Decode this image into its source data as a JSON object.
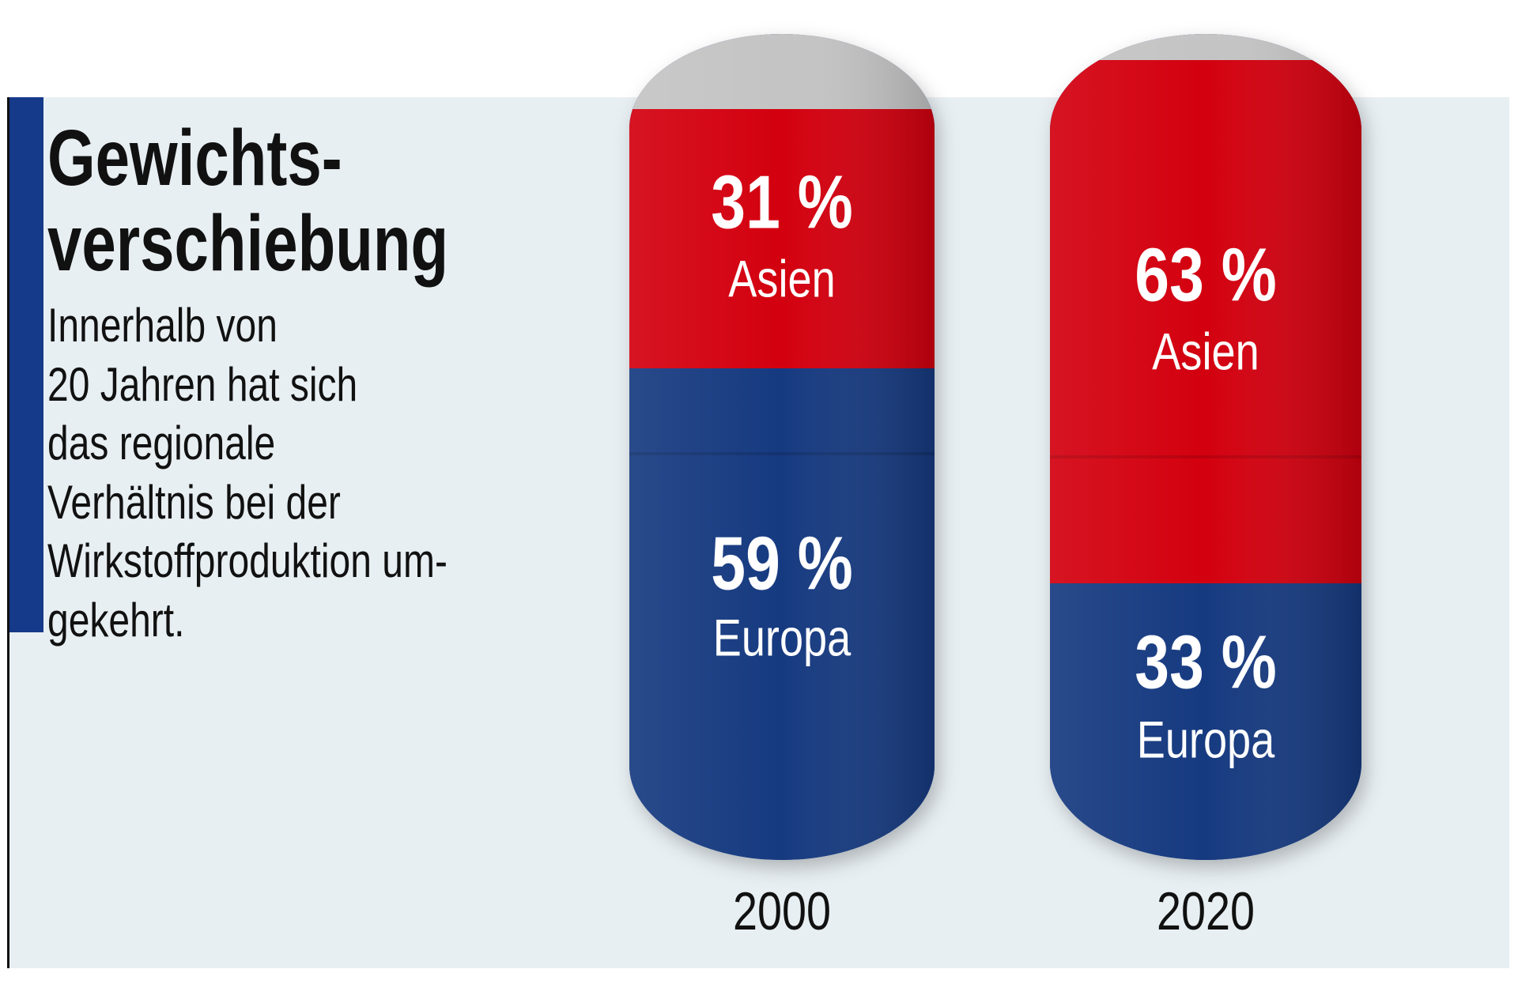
{
  "title_lines": [
    "Gewichts-",
    "verschiebung"
  ],
  "description_lines": [
    "Innerhalb von",
    "20 Jahren hat sich",
    "das regionale",
    "Verhältnis bei der",
    "Wirkstoffproduktion um-",
    "gekehrt."
  ],
  "colors": {
    "asien": "#d3000f",
    "europa": "#163a80",
    "background": "#e8eff3",
    "accent_bar": "#163a8a",
    "capsule_top": "#c4c4c4"
  },
  "chart_data": {
    "type": "bar",
    "subtype": "stacked capsule",
    "categories": [
      "2000",
      "2020"
    ],
    "series": [
      {
        "name": "Asien",
        "values": [
          31,
          63
        ],
        "labels": [
          "31 %",
          "63 %"
        ]
      },
      {
        "name": "Europa",
        "values": [
          59,
          33
        ],
        "labels": [
          "59 %",
          "33 %"
        ]
      }
    ],
    "unit": "%"
  }
}
